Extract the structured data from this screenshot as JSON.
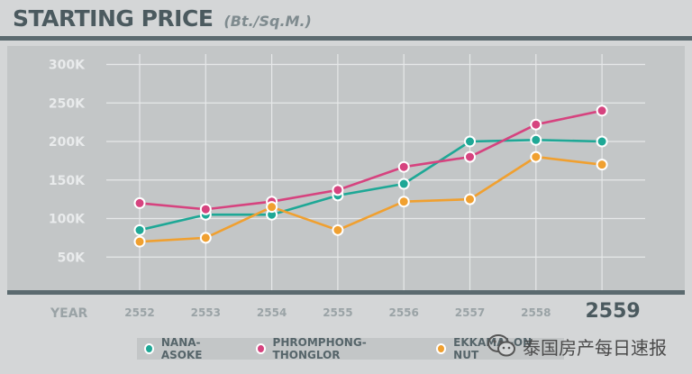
{
  "title": "STARTING PRICE",
  "subtitle": "(Bt./Sq.M.)",
  "watermark_text": "泰国房产每日速报",
  "chart_data": {
    "type": "line",
    "title": "STARTING PRICE",
    "subtitle": "(Bt./Sq.M.)",
    "xlabel": "YEAR",
    "ylabel": "",
    "categories": [
      "2552",
      "2553",
      "2554",
      "2555",
      "2556",
      "2557",
      "2558",
      "2559"
    ],
    "highlight_category": "2559",
    "ylim": [
      0,
      300000
    ],
    "y_ticks": [
      50000,
      100000,
      150000,
      200000,
      250000,
      300000
    ],
    "y_tick_labels": [
      "50K",
      "100K",
      "150K",
      "200K",
      "250K",
      "300K"
    ],
    "grid": true,
    "legend_position": "bottom",
    "series": [
      {
        "name": "NANA-ASOKE",
        "color": "#1ea896",
        "values": [
          85000,
          105000,
          105000,
          130000,
          145000,
          200000,
          202000,
          200000
        ]
      },
      {
        "name": "PHROMPHONG-THONGLOR",
        "color": "#d6437f",
        "values": [
          120000,
          112000,
          122000,
          137000,
          167000,
          180000,
          222000,
          240000
        ]
      },
      {
        "name": "EKKAMAI-ON NUT",
        "color": "#f0a030",
        "values": [
          70000,
          75000,
          115000,
          85000,
          122000,
          125000,
          180000,
          170000
        ]
      }
    ]
  }
}
